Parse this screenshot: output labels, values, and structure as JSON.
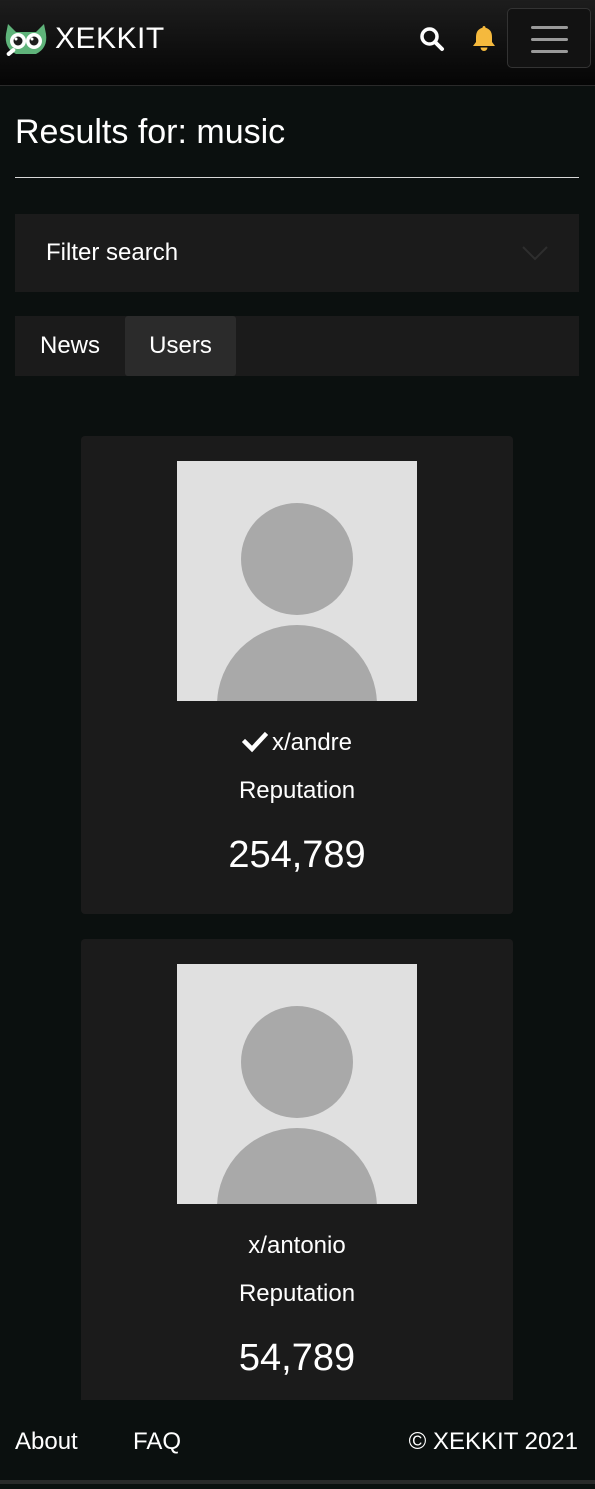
{
  "header": {
    "brand": "XEKKIT",
    "logo_icon": "owl-logo-icon",
    "search_icon": "search-icon",
    "bell_icon": "bell-icon",
    "menu_icon": "hamburger-menu-icon",
    "accent_color": "#f5b93d",
    "logo_color": "#5fb37a"
  },
  "main": {
    "title": "Results for: music",
    "filter": {
      "label": "Filter search"
    },
    "tabs": [
      {
        "label": "News",
        "active": false
      },
      {
        "label": "Users",
        "active": true
      }
    ],
    "users": [
      {
        "username": "x/andre",
        "verified": true,
        "reputation_label": "Reputation",
        "reputation": "254,789"
      },
      {
        "username": "x/antonio",
        "verified": false,
        "reputation_label": "Reputation",
        "reputation": "54,789"
      }
    ]
  },
  "footer": {
    "about": "About",
    "faq": "FAQ",
    "copyright": "© XEKKIT 2021"
  }
}
